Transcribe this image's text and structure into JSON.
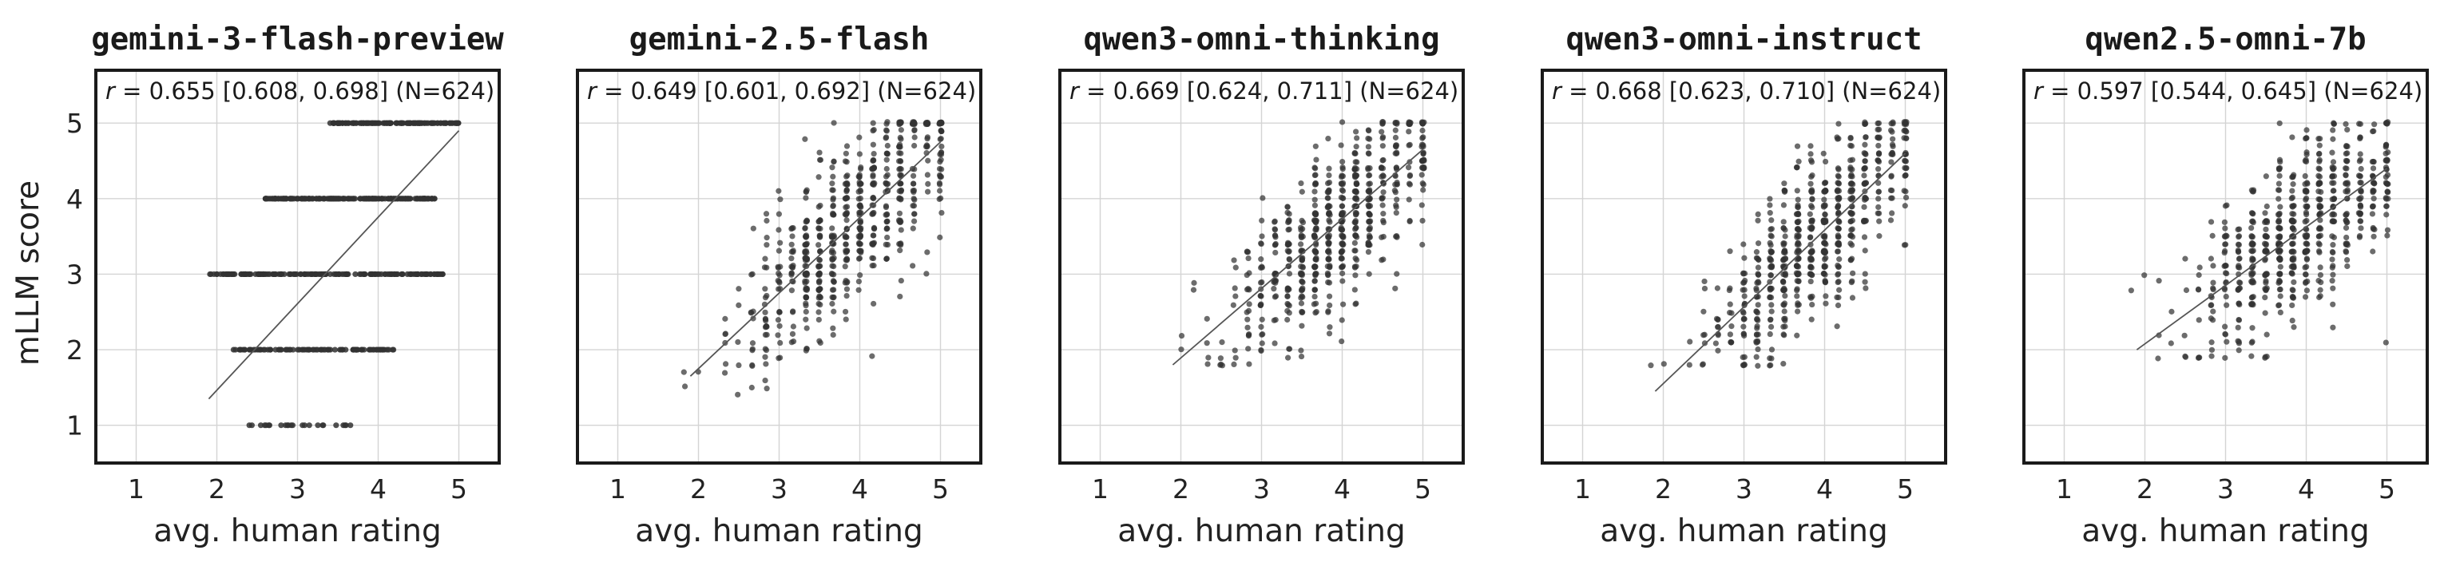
{
  "figure": {
    "ylabel": "mLLM score",
    "xlabel": "avg. human rating"
  },
  "colors": {
    "point": "#333333",
    "fit_line": "#555555",
    "grid": "#d4d4d4",
    "frame": "#1a1a1a"
  },
  "chart_data": [
    {
      "type": "scatter",
      "title": "gemini-3-flash-preview",
      "annotation": {
        "r_label": "r",
        "text": " = 0.655 [0.608, 0.698] (N=624)"
      },
      "xlabel": "avg. human rating",
      "ylabel": "mLLM score",
      "xlim": [
        0.5,
        5.5
      ],
      "ylim": [
        0.5,
        5.7
      ],
      "xticks": [
        1,
        2,
        3,
        4,
        5
      ],
      "yticks": [
        1,
        2,
        3,
        4,
        5
      ],
      "grid": true,
      "n": 624,
      "discrete_y": true,
      "fit_line": {
        "x": [
          1.9,
          5.0
        ],
        "y": [
          1.35,
          4.9
        ]
      },
      "point_groups": [
        {
          "y": 5,
          "x_min": 3.4,
          "x_max": 5.0,
          "count": 130
        },
        {
          "y": 4,
          "x_min": 2.6,
          "x_max": 4.7,
          "count": 200
        },
        {
          "y": 3,
          "x_min": 1.9,
          "x_max": 4.8,
          "count": 170
        },
        {
          "y": 2,
          "x_min": 2.2,
          "x_max": 4.2,
          "count": 100
        },
        {
          "y": 1,
          "x_min": 2.4,
          "x_max": 3.8,
          "count": 24
        }
      ]
    },
    {
      "type": "scatter",
      "title": "gemini-2.5-flash",
      "annotation": {
        "r_label": "r",
        "text": " = 0.649 [0.601, 0.692] (N=624)"
      },
      "xlabel": "avg. human rating",
      "ylabel": "mLLM score",
      "xlim": [
        0.5,
        5.5
      ],
      "ylim": [
        0.5,
        5.7
      ],
      "xticks": [
        1,
        2,
        3,
        4,
        5
      ],
      "yticks": [
        1,
        2,
        3,
        4,
        5
      ],
      "grid": true,
      "n": 624,
      "discrete_y": false,
      "fit_line": {
        "x": [
          1.9,
          5.0
        ],
        "y": [
          1.65,
          4.75
        ]
      },
      "cloud": {
        "x_center": 3.9,
        "x_spread": 0.65,
        "y_min": 1.35,
        "y_max": 5.0,
        "y_noise": 0.55
      }
    },
    {
      "type": "scatter",
      "title": "qwen3-omni-thinking",
      "annotation": {
        "r_label": "r",
        "text": " = 0.669 [0.624, 0.711] (N=624)"
      },
      "xlabel": "avg. human rating",
      "ylabel": "mLLM score",
      "xlim": [
        0.5,
        5.5
      ],
      "ylim": [
        0.5,
        5.7
      ],
      "xticks": [
        1,
        2,
        3,
        4,
        5
      ],
      "yticks": [
        1,
        2,
        3,
        4,
        5
      ],
      "grid": true,
      "n": 624,
      "discrete_y": false,
      "fit_line": {
        "x": [
          1.9,
          5.0
        ],
        "y": [
          1.8,
          4.65
        ]
      },
      "cloud": {
        "x_center": 3.9,
        "x_spread": 0.65,
        "y_min": 1.75,
        "y_max": 5.0,
        "y_noise": 0.5
      }
    },
    {
      "type": "scatter",
      "title": "qwen3-omni-instruct",
      "annotation": {
        "r_label": "r",
        "text": " = 0.668 [0.623, 0.710] (N=624)"
      },
      "xlabel": "avg. human rating",
      "ylabel": "mLLM score",
      "xlim": [
        0.5,
        5.5
      ],
      "ylim": [
        0.5,
        5.7
      ],
      "xticks": [
        1,
        2,
        3,
        4,
        5
      ],
      "yticks": [
        1,
        2,
        3,
        4,
        5
      ],
      "grid": true,
      "n": 624,
      "discrete_y": false,
      "fit_line": {
        "x": [
          1.9,
          5.0
        ],
        "y": [
          1.45,
          4.6
        ]
      },
      "cloud": {
        "x_center": 3.9,
        "x_spread": 0.65,
        "y_min": 1.8,
        "y_max": 5.0,
        "y_noise": 0.55
      }
    },
    {
      "type": "scatter",
      "title": "qwen2.5-omni-7b",
      "annotation": {
        "r_label": "r",
        "text": " = 0.597 [0.544, 0.645] (N=624)"
      },
      "xlabel": "avg. human rating",
      "ylabel": "mLLM score",
      "xlim": [
        0.5,
        5.5
      ],
      "ylim": [
        0.5,
        5.7
      ],
      "xticks": [
        1,
        2,
        3,
        4,
        5
      ],
      "yticks": [
        1,
        2,
        3,
        4,
        5
      ],
      "grid": true,
      "n": 624,
      "discrete_y": false,
      "fit_line": {
        "x": [
          1.9,
          5.0
        ],
        "y": [
          2.0,
          4.4
        ]
      },
      "cloud": {
        "x_center": 3.9,
        "x_spread": 0.65,
        "y_min": 1.9,
        "y_max": 5.0,
        "y_noise": 0.55
      }
    }
  ]
}
